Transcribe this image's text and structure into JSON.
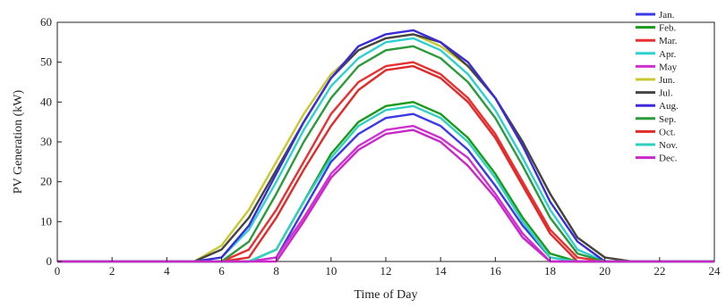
{
  "chart_data": {
    "type": "line",
    "title": "",
    "xlabel": "Time of Day",
    "ylabel": "PV Generation (kW)",
    "xlim": [
      0,
      24
    ],
    "ylim": [
      0,
      60
    ],
    "xticks": [
      "0",
      "2",
      "4",
      "6",
      "8",
      "10",
      "12",
      "14",
      "16",
      "18",
      "20",
      "22",
      "24"
    ],
    "yticks": [
      "0",
      "10",
      "20",
      "30",
      "40",
      "50",
      "60"
    ],
    "grid": false,
    "legend": "right",
    "x": [
      0,
      1,
      2,
      3,
      4,
      5,
      6,
      7,
      8,
      9,
      10,
      11,
      12,
      13,
      14,
      15,
      16,
      17,
      18,
      19,
      20,
      21,
      22,
      23,
      24
    ],
    "series": [
      {
        "name": "Jan.",
        "color": "#3a3ae8",
        "values": [
          0,
          0,
          0,
          0,
          0,
          0,
          0,
          0,
          1,
          13,
          25,
          32,
          36,
          37,
          34,
          28,
          19,
          9,
          1,
          0,
          0,
          0,
          0,
          0,
          0
        ]
      },
      {
        "name": "Feb.",
        "color": "#1a9a1a",
        "values": [
          0,
          0,
          0,
          0,
          0,
          0,
          0,
          0,
          3,
          15,
          27,
          35,
          39,
          40,
          37,
          31,
          22,
          11,
          2,
          0,
          0,
          0,
          0,
          0,
          0
        ]
      },
      {
        "name": "Mar.",
        "color": "#e83030",
        "values": [
          0,
          0,
          0,
          0,
          0,
          0,
          0,
          3,
          13,
          25,
          37,
          45,
          49,
          50,
          47,
          41,
          32,
          20,
          8,
          1,
          0,
          0,
          0,
          0,
          0
        ]
      },
      {
        "name": "Apr.",
        "color": "#2fd0d0",
        "values": [
          0,
          0,
          0,
          0,
          0,
          0,
          1,
          8,
          20,
          33,
          44,
          51,
          55,
          56,
          53,
          47,
          38,
          26,
          13,
          3,
          0,
          0,
          0,
          0,
          0
        ]
      },
      {
        "name": "May",
        "color": "#d030d0",
        "values": [
          0,
          0,
          0,
          0,
          0,
          0,
          0,
          0,
          1,
          11,
          22,
          29,
          33,
          34,
          31,
          26,
          17,
          7,
          0,
          0,
          0,
          0,
          0,
          0,
          0
        ]
      },
      {
        "name": "Jun.",
        "color": "#c8c830",
        "values": [
          0,
          0,
          0,
          0,
          0,
          0,
          4,
          13,
          25,
          37,
          47,
          53,
          56,
          57,
          54,
          49,
          41,
          30,
          17,
          6,
          1,
          0,
          0,
          0,
          0
        ]
      },
      {
        "name": "Jul.",
        "color": "#444444",
        "values": [
          0,
          0,
          0,
          0,
          0,
          0,
          3,
          11,
          23,
          35,
          46,
          53,
          56,
          57,
          55,
          49,
          41,
          30,
          17,
          6,
          1,
          0,
          0,
          0,
          0
        ]
      },
      {
        "name": "Aug.",
        "color": "#3a2ad8",
        "values": [
          0,
          0,
          0,
          0,
          0,
          0,
          1,
          9,
          22,
          35,
          46,
          54,
          57,
          58,
          55,
          50,
          41,
          29,
          15,
          5,
          0,
          0,
          0,
          0,
          0
        ]
      },
      {
        "name": "Sep.",
        "color": "#2a9a3a",
        "values": [
          0,
          0,
          0,
          0,
          0,
          0,
          0,
          5,
          17,
          30,
          41,
          49,
          53,
          54,
          51,
          45,
          36,
          24,
          11,
          2,
          0,
          0,
          0,
          0,
          0
        ]
      },
      {
        "name": "Oct.",
        "color": "#e02a2a",
        "values": [
          0,
          0,
          0,
          0,
          0,
          0,
          0,
          1,
          11,
          23,
          34,
          43,
          48,
          49,
          46,
          40,
          31,
          19,
          7,
          0,
          0,
          0,
          0,
          0,
          0
        ]
      },
      {
        "name": "Nov.",
        "color": "#30d0c0",
        "values": [
          0,
          0,
          0,
          0,
          0,
          0,
          0,
          0,
          3,
          15,
          26,
          34,
          38,
          39,
          36,
          30,
          21,
          10,
          1,
          0,
          0,
          0,
          0,
          0,
          0
        ]
      },
      {
        "name": "Dec.",
        "color": "#c828c8",
        "values": [
          0,
          0,
          0,
          0,
          0,
          0,
          0,
          0,
          0,
          10,
          21,
          28,
          32,
          33,
          30,
          24,
          16,
          6,
          0,
          0,
          0,
          0,
          0,
          0,
          0
        ]
      }
    ]
  }
}
